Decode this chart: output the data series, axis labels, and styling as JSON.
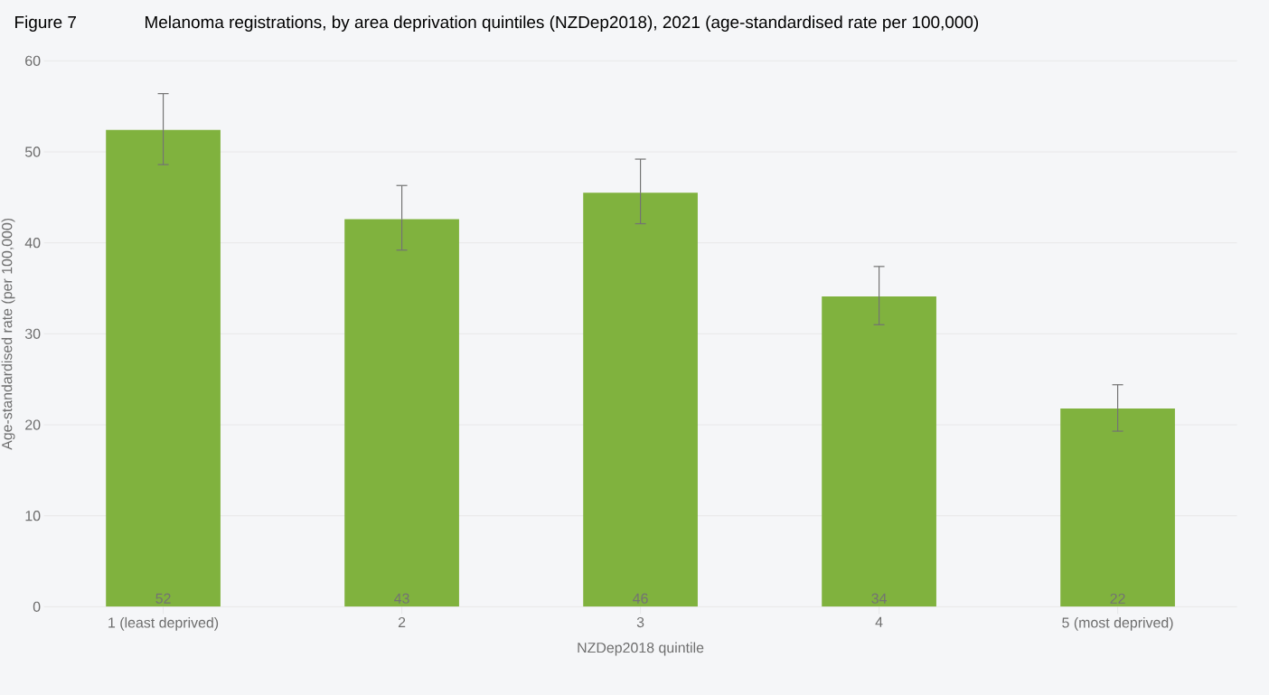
{
  "chart_data": {
    "type": "bar",
    "title": "Figure 7",
    "subtitle": "Melanoma registrations, by area deprivation quintiles (NZDep2018), 2021 (age-standardised rate per 100,000)",
    "xlabel": "NZDep2018 quintile",
    "ylabel": "Age-standardised rate (per 100,000)",
    "categories": [
      "1 (least deprived)",
      "2",
      "3",
      "4",
      "5 (most deprived)"
    ],
    "values": [
      52.4,
      42.6,
      45.5,
      34.1,
      21.8
    ],
    "errors": [
      [
        48.6,
        56.4
      ],
      [
        39.2,
        46.3
      ],
      [
        42.1,
        49.2
      ],
      [
        31.0,
        37.4
      ],
      [
        19.3,
        24.4
      ]
    ],
    "value_labels": [
      "52",
      "43",
      "46",
      "34",
      "22"
    ],
    "color": "#80b23e",
    "ylim": [
      0,
      60
    ],
    "yticks": [
      0,
      10,
      20,
      30,
      40,
      50,
      60
    ],
    "grid": "y"
  }
}
